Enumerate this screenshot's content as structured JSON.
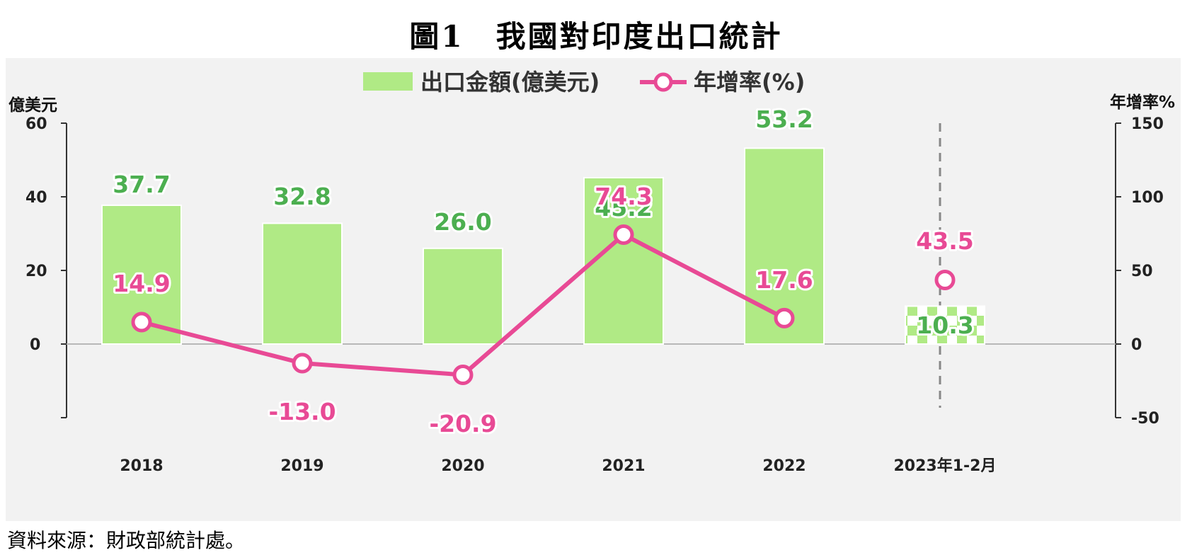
{
  "title": "圖1　我國對印度出口統計",
  "source": "資料來源：財政部統計處。",
  "colors": {
    "bar": "#b0ea85",
    "line": "#e84a95",
    "bar_label": "#4caf50",
    "line_label": "#e84a95"
  },
  "chart_data": {
    "type": "bar",
    "categories": [
      "2018",
      "2019",
      "2020",
      "2021",
      "2022",
      "2023年1-2月"
    ],
    "series": [
      {
        "name": "出口金額(億美元)",
        "kind": "bar",
        "axis": "left",
        "values": [
          37.7,
          32.8,
          26.0,
          45.2,
          53.2,
          10.3
        ],
        "labels": [
          "37.7",
          "32.8",
          "26.0",
          "45.2",
          "53.2",
          "10.3"
        ]
      },
      {
        "name": "年增率(%)",
        "kind": "line",
        "axis": "right",
        "values": [
          14.9,
          -13.0,
          -20.9,
          74.3,
          17.6,
          43.5
        ],
        "labels": [
          "14.9",
          "-13.0",
          "-20.9",
          "74.3",
          "17.6",
          "43.5"
        ]
      }
    ],
    "ylabel": "億美元",
    "y2label": "年增率%",
    "ylim": [
      -20,
      60
    ],
    "y2lim": [
      -50,
      150
    ],
    "yticks": [
      "60",
      "40",
      "20",
      "0"
    ],
    "y2ticks": [
      "150",
      "100",
      "50",
      "0",
      "-50"
    ],
    "legend_position": "top-center",
    "grid": false,
    "notes": "The 2023年1-2月 bar is checkered and separated by a dashed line; its growth point is not connected to the line."
  }
}
